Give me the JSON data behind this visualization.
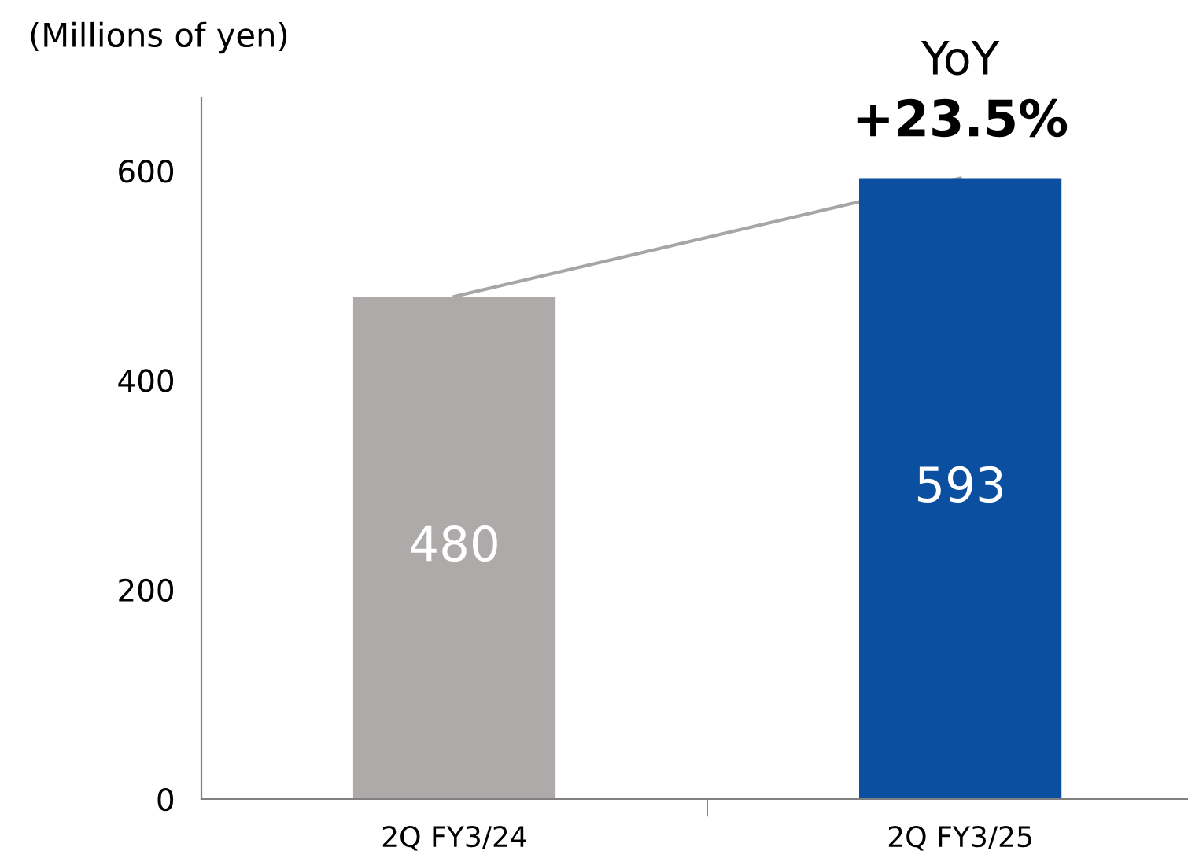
{
  "chart_data": {
    "type": "bar",
    "ylabel": "(Millions of yen)",
    "categories": [
      "2Q FY3/24",
      "2Q FY3/25"
    ],
    "series": [
      {
        "values": [
          480,
          593
        ],
        "colors": [
          "#aeaaaa",
          "#0b4fa0"
        ],
        "value_labels": [
          "480",
          "593"
        ]
      },
      {
        "type": "line",
        "color": "#a6a6a6",
        "values": [
          480,
          593
        ],
        "value_labels": [
          null,
          null
        ]
      }
    ],
    "ylim": [
      0,
      670
    ],
    "yticks": [
      0,
      200,
      400,
      600
    ],
    "grid": false,
    "legend": false,
    "annotations": [
      "YoY",
      {
        "text": "+23.5%",
        "x": "2Q FY3/25",
        "y": 593
      }
    ]
  }
}
